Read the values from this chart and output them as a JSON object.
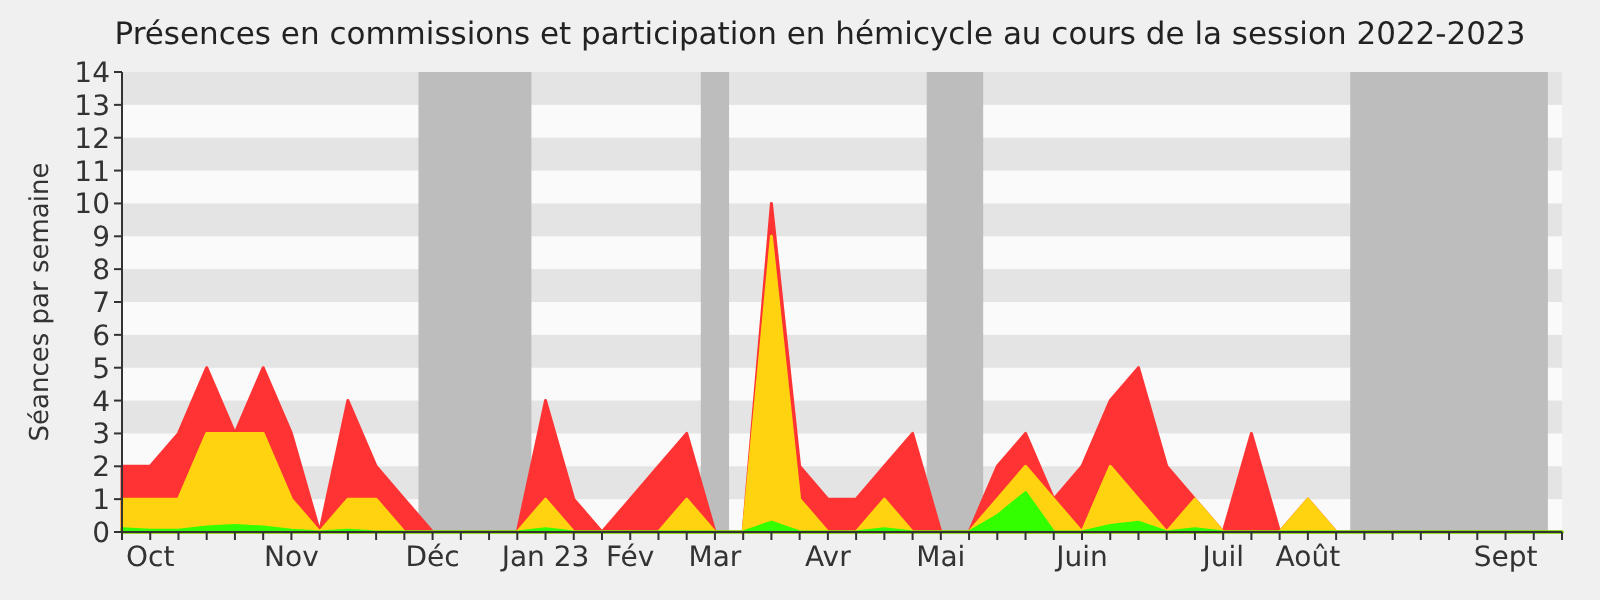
{
  "chart_data": {
    "type": "area",
    "title": "Présences en commissions et participation en hémicycle au cours de la session 2022-2023",
    "ylabel": "Séances par semaine",
    "categories": [
      null,
      "Oct",
      null,
      null,
      null,
      null,
      "Nov",
      null,
      null,
      null,
      null,
      "Déc",
      null,
      null,
      null,
      "Jan 23",
      null,
      null,
      "Fév",
      null,
      null,
      "Mar",
      null,
      null,
      null,
      "Avr",
      null,
      null,
      null,
      "Mai",
      null,
      null,
      null,
      null,
      "Juin",
      null,
      null,
      null,
      null,
      "Juil",
      null,
      null,
      "Août",
      null,
      null,
      null,
      null,
      null,
      null,
      "Sept",
      null,
      null
    ],
    "series": [
      {
        "color": "#ff3333",
        "values": [
          2,
          2,
          3,
          5,
          3,
          5,
          3,
          0,
          4,
          2,
          1,
          0,
          0,
          0,
          0,
          4,
          1,
          0,
          1,
          2,
          3,
          0,
          0,
          10,
          2,
          1,
          1,
          2,
          3,
          0,
          0,
          2,
          3,
          1,
          2,
          4,
          5,
          2,
          1,
          0,
          3,
          0,
          1,
          0,
          0,
          0,
          0,
          0,
          0,
          0,
          0,
          0
        ]
      },
      {
        "color": "#ffd30f",
        "values": [
          1,
          1,
          1,
          3,
          3,
          3,
          1,
          0,
          1,
          1,
          0,
          0,
          0,
          0,
          0,
          1,
          0,
          0,
          0,
          0,
          1,
          0,
          0,
          9,
          1,
          0,
          0,
          1,
          0,
          0,
          0,
          1,
          2,
          1,
          0,
          2,
          1,
          0,
          1,
          0,
          0,
          0,
          1,
          0,
          0,
          0,
          0,
          0,
          0,
          0,
          0,
          0
        ]
      },
      {
        "color": "#33ff00",
        "values": [
          0.1,
          0.05,
          0.05,
          0.15,
          0.2,
          0.15,
          0.05,
          0,
          0.05,
          0,
          0,
          0,
          0,
          0,
          0,
          0.1,
          0,
          0,
          0,
          0,
          0,
          0,
          0,
          0.3,
          0,
          0,
          0,
          0.1,
          0,
          0,
          0,
          0.5,
          1.2,
          0,
          0,
          0.2,
          0.3,
          0,
          0.1,
          0,
          0,
          0,
          0,
          0,
          0,
          0,
          0,
          0,
          0,
          0,
          0,
          0
        ]
      }
    ],
    "ylim": [
      0,
      14
    ],
    "yticks": [
      0,
      1,
      2,
      3,
      4,
      5,
      6,
      7,
      8,
      9,
      10,
      11,
      12,
      13,
      14
    ],
    "grid": false
  }
}
